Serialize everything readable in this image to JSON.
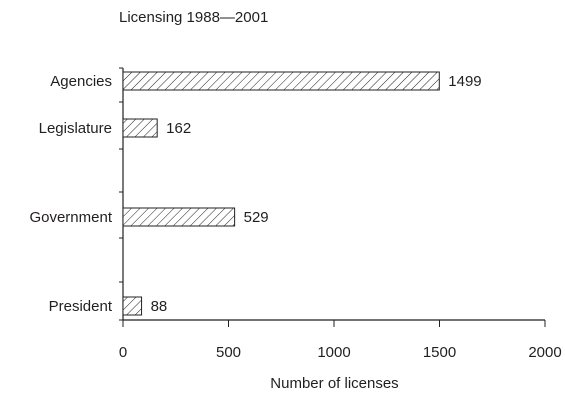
{
  "chart_data": {
    "type": "bar",
    "orientation": "horizontal",
    "title": "Licensing 1988—2001",
    "xlabel": "Number of licenses",
    "ylabel": "",
    "categories": [
      "Agencies",
      "Legislature",
      "Government",
      "President"
    ],
    "values": [
      1499,
      162,
      529,
      88
    ],
    "data_labels": [
      "1499",
      "162",
      "529",
      "88"
    ],
    "xlim": [
      0,
      2000
    ],
    "xticks": [
      0,
      500,
      1000,
      1500,
      2000
    ],
    "grid": false,
    "legend": "none",
    "bar_fill": "diagonal-hatch",
    "colors": {
      "ink": "#231f20",
      "background": "#ffffff"
    }
  }
}
